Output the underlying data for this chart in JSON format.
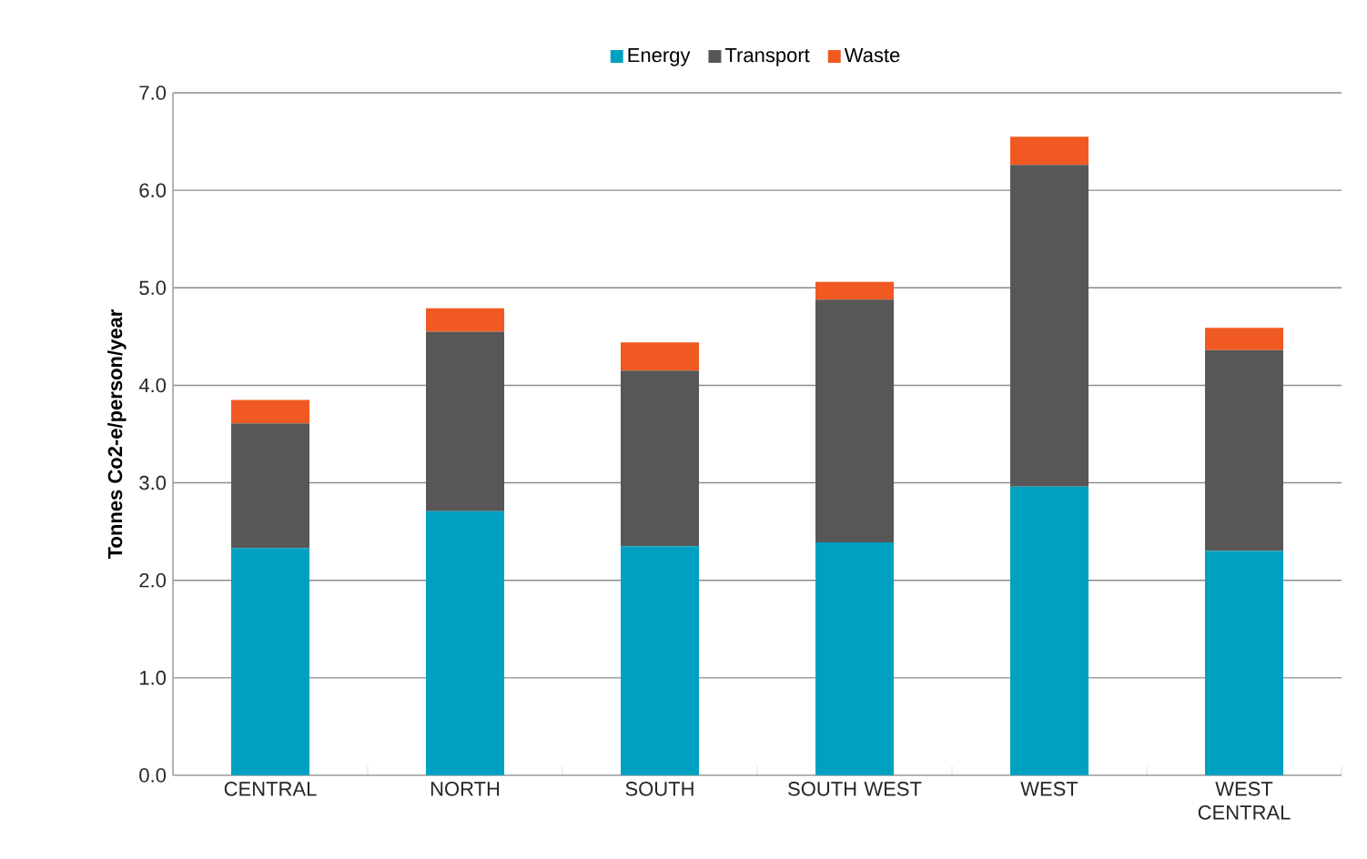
{
  "chart_data": {
    "type": "bar",
    "stacked": true,
    "ylabel": "Tonnes Co2-e/person/year",
    "categories": [
      "CENTRAL",
      "NORTH",
      "SOUTH",
      "SOUTH WEST",
      "WEST",
      "WEST CENTRAL"
    ],
    "series": [
      {
        "name": "Energy",
        "color": "#00a0c0",
        "values": [
          2.33,
          2.71,
          2.35,
          2.39,
          2.96,
          2.3
        ]
      },
      {
        "name": "Transport",
        "color": "#575757",
        "values": [
          1.28,
          1.84,
          1.8,
          2.49,
          3.3,
          2.06
        ]
      },
      {
        "name": "Waste",
        "color": "#f05a22",
        "values": [
          0.24,
          0.24,
          0.29,
          0.18,
          0.29,
          0.23
        ]
      }
    ],
    "ylim": [
      0,
      7
    ],
    "yticks": [
      {
        "value": 0,
        "label": "0.0"
      },
      {
        "value": 1,
        "label": "1.0"
      },
      {
        "value": 2,
        "label": "2.0"
      },
      {
        "value": 3,
        "label": "3.0"
      },
      {
        "value": 4,
        "label": "4.0"
      },
      {
        "value": 5,
        "label": "5.0"
      },
      {
        "value": 6,
        "label": "6.0"
      },
      {
        "value": 7,
        "label": "7.0"
      }
    ],
    "grid": "y",
    "legend": "top"
  }
}
